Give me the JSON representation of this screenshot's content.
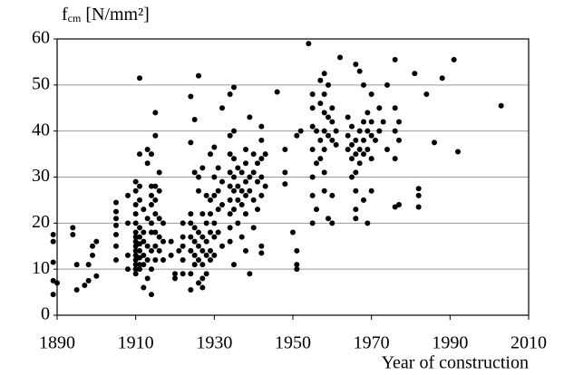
{
  "chart_data": {
    "type": "scatter",
    "ylabel": "f",
    "ylabel_sub": "cm",
    "ylabel_unit": "[N/mm²]",
    "xlabel": "Year of construction",
    "color": "#000000",
    "xlim": [
      1890,
      2010
    ],
    "xticks": [
      1890,
      1910,
      1930,
      1950,
      1970,
      1990,
      2010
    ],
    "ylim": [
      0,
      60
    ],
    "yticks": [
      0,
      10,
      20,
      30,
      40,
      50,
      60
    ],
    "grid": true,
    "x": [
      1889,
      1889,
      1889,
      1889,
      1889,
      1890,
      1894,
      1894,
      1895,
      1895,
      1897,
      1898,
      1899,
      1899,
      1900,
      1900,
      1898,
      1905,
      1905,
      1905,
      1905,
      1905,
      1905,
      1905,
      1908,
      1908,
      1908,
      1908,
      1910,
      1910,
      1910,
      1910,
      1910,
      1910,
      1910,
      1910,
      1910,
      1910,
      1910,
      1910,
      1910,
      1910,
      1910,
      1911,
      1911,
      1911,
      1911,
      1911,
      1911,
      1911,
      1911,
      1911,
      1911,
      1911,
      1912,
      1912,
      1912,
      1912,
      1912,
      1912,
      1913,
      1913,
      1913,
      1913,
      1913,
      1913,
      1914,
      1914,
      1914,
      1914,
      1914,
      1914,
      1914,
      1914,
      1914,
      1915,
      1915,
      1915,
      1915,
      1915,
      1915,
      1915,
      1915,
      1916,
      1916,
      1916,
      1916,
      1916,
      1917,
      1917,
      1917,
      1919,
      1919,
      1920,
      1920,
      1921,
      1922,
      1922,
      1922,
      1922,
      1922,
      1924,
      1924,
      1924,
      1924,
      1924,
      1924,
      1924,
      1924,
      1925,
      1925,
      1925,
      1925,
      1925,
      1925,
      1926,
      1926,
      1926,
      1926,
      1926,
      1926,
      1926,
      1927,
      1927,
      1927,
      1927,
      1927,
      1927,
      1927,
      1928,
      1928,
      1928,
      1928,
      1928,
      1929,
      1929,
      1929,
      1929,
      1929,
      1929,
      1930,
      1930,
      1930,
      1930,
      1930,
      1930,
      1931,
      1931,
      1931,
      1931,
      1932,
      1932,
      1932,
      1932,
      1934,
      1934,
      1934,
      1934,
      1934,
      1934,
      1934,
      1934,
      1934,
      1935,
      1935,
      1935,
      1935,
      1935,
      1935,
      1935,
      1936,
      1936,
      1936,
      1936,
      1937,
      1937,
      1937,
      1937,
      1938,
      1938,
      1938,
      1938,
      1938,
      1938,
      1939,
      1939,
      1939,
      1939,
      1940,
      1940,
      1940,
      1940,
      1941,
      1941,
      1941,
      1942,
      1942,
      1942,
      1942,
      1942,
      1942,
      1942,
      1943,
      1943,
      1946,
      1948,
      1948,
      1948,
      1950,
      1951,
      1951,
      1951,
      1951,
      1952,
      1954,
      1955,
      1955,
      1955,
      1955,
      1955,
      1955,
      1955,
      1956,
      1956,
      1956,
      1957,
      1957,
      1957,
      1957,
      1958,
      1958,
      1958,
      1958,
      1958,
      1958,
      1958,
      1959,
      1959,
      1959,
      1959,
      1960,
      1960,
      1960,
      1960,
      1960,
      1961,
      1961,
      1962,
      1964,
      1964,
      1964,
      1965,
      1965,
      1965,
      1965,
      1966,
      1966,
      1966,
      1966,
      1966,
      1966,
      1966,
      1967,
      1967,
      1967,
      1967,
      1968,
      1968,
      1968,
      1968,
      1968,
      1969,
      1969,
      1969,
      1969,
      1970,
      1970,
      1970,
      1970,
      1970,
      1971,
      1972,
      1972,
      1973,
      1974,
      1974,
      1976,
      1976,
      1976,
      1976,
      1976,
      1977,
      1977,
      1977,
      1981,
      1982,
      1982,
      1982,
      1984,
      1986,
      1988,
      1991,
      1992,
      2003
    ],
    "values": [
      17.5,
      16,
      11.5,
      7.5,
      4.5,
      7,
      19,
      17.5,
      11,
      5.5,
      6.5,
      11,
      13,
      15,
      16,
      8.5,
      7.5,
      24.5,
      22.5,
      21,
      19.5,
      17.5,
      15,
      12,
      26,
      20,
      13,
      10,
      29,
      27,
      24,
      22,
      20,
      18,
      17,
      16,
      15,
      14,
      13,
      12,
      11,
      10,
      9,
      51.5,
      35,
      28,
      25,
      19,
      17,
      15.5,
      14,
      12.5,
      11,
      10,
      23,
      18,
      16,
      13,
      11,
      6,
      36,
      33,
      21,
      15,
      12,
      8,
      35,
      28,
      26,
      24,
      20,
      18,
      14,
      10,
      4.5,
      44,
      39,
      28,
      25,
      22,
      18,
      15,
      12,
      31,
      27,
      21,
      17,
      14,
      20,
      16,
      12,
      16,
      13,
      9,
      8,
      14,
      20,
      17,
      15,
      12,
      9,
      47.5,
      37.5,
      22,
      20,
      17,
      14,
      9,
      5.5,
      42.5,
      31,
      19,
      16,
      13,
      11,
      52,
      30,
      27,
      18,
      15,
      12,
      7,
      32,
      22,
      17,
      14,
      11,
      8,
      6,
      26,
      20,
      16,
      13,
      9,
      35,
      25,
      22,
      18,
      14,
      12,
      36.5,
      30,
      26,
      20,
      17,
      13,
      32,
      27,
      23,
      18,
      45,
      29,
      24,
      15,
      48,
      39,
      35,
      31,
      28,
      25,
      22,
      19,
      16,
      49.5,
      40,
      34,
      30,
      27,
      23,
      11,
      32,
      28,
      25,
      20,
      31,
      27,
      24,
      17,
      36,
      33,
      29,
      26,
      22,
      14,
      43,
      30,
      27,
      9,
      35,
      31,
      25,
      19,
      33,
      29,
      23,
      41,
      38,
      34,
      30,
      26,
      15,
      13.5,
      35,
      28,
      48.5,
      36,
      31,
      28.5,
      18,
      39,
      14,
      11,
      10,
      40,
      59,
      48,
      45,
      41,
      36,
      30,
      26,
      20,
      40,
      33,
      23,
      51,
      46,
      38,
      34,
      52.5,
      48,
      44,
      40,
      36,
      31,
      27,
      50,
      43,
      39,
      21,
      45,
      42,
      38,
      26,
      20,
      40,
      37,
      56,
      43,
      39,
      36,
      41,
      37,
      34,
      30,
      54.5,
      38,
      35,
      31,
      27,
      23,
      21,
      53,
      40,
      36,
      33,
      50,
      42,
      38,
      35,
      25,
      44,
      40,
      36,
      20,
      48,
      42,
      39,
      34,
      27,
      38,
      45,
      40,
      42,
      50,
      36,
      55.5,
      45,
      40,
      34,
      23.5,
      42,
      38,
      24,
      52.5,
      27.5,
      26,
      23.5,
      48,
      37.5,
      51.5,
      55.5,
      35.5,
      45.5
    ]
  }
}
